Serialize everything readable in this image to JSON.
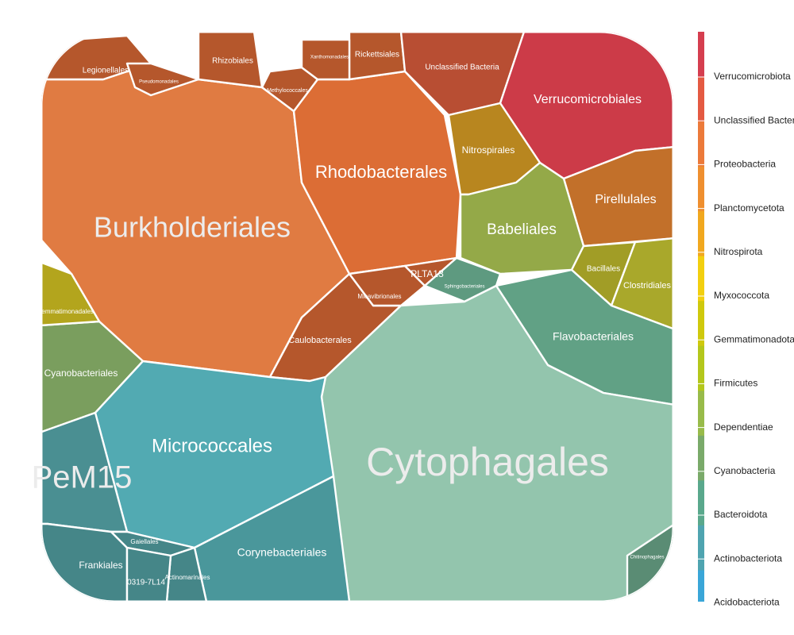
{
  "chart_data": {
    "type": "voronoi_treemap",
    "title": "",
    "legend": {
      "position": "right",
      "entries": [
        {
          "name": "Verrucomicrobiota",
          "color": "#d53e4f"
        },
        {
          "name": "Unclassified Bacteria",
          "color": "#e45a42"
        },
        {
          "name": "Proteobacteria",
          "color": "#ec7a3a"
        },
        {
          "name": "Planctomycetota",
          "color": "#ef8f2f"
        },
        {
          "name": "Nitrospirota",
          "color": "#f1a81f"
        },
        {
          "name": "Myxococcota",
          "color": "#f2cf0f"
        },
        {
          "name": "Gemmatimonadota",
          "color": "#cfc90d"
        },
        {
          "name": "Firmicutes",
          "color": "#b4c71c"
        },
        {
          "name": "Dependentiae",
          "color": "#98bb4a"
        },
        {
          "name": "Cyanobacteria",
          "color": "#7aaa6a"
        },
        {
          "name": "Bacteroidota",
          "color": "#5aa88c"
        },
        {
          "name": "Actinobacteriota",
          "color": "#4fa4b0"
        },
        {
          "name": "Acidobacteriota",
          "color": "#3aa6d8"
        }
      ]
    },
    "cells": [
      {
        "label": "Burkholderiales",
        "phylum": "Proteobacteria",
        "color": "#e07b42",
        "size": "xl"
      },
      {
        "label": "Rhodobacterales",
        "phylum": "Proteobacteria",
        "color": "#dc6d35",
        "size": "l"
      },
      {
        "label": "Caulobacterales",
        "phylum": "Proteobacteria",
        "color": "#b5572c",
        "size": "s"
      },
      {
        "label": "Micavibrionales",
        "phylum": "Proteobacteria",
        "color": "#b5572c",
        "size": "xs"
      },
      {
        "label": "PLTA13",
        "phylum": "Proteobacteria",
        "color": "#b5572c",
        "size": "s"
      },
      {
        "label": "Legionellales",
        "phylum": "Proteobacteria",
        "color": "#b5572c",
        "size": "s"
      },
      {
        "label": "Rhizobiales",
        "phylum": "Proteobacteria",
        "color": "#b5572c",
        "size": "s"
      },
      {
        "label": "Rickettsiales",
        "phylum": "Proteobacteria",
        "color": "#b5572c",
        "size": "s"
      },
      {
        "label": "Methylococcales",
        "phylum": "Proteobacteria",
        "color": "#b5572c",
        "size": "xs"
      },
      {
        "label": "Pseudomonadales",
        "phylum": "Proteobacteria",
        "color": "#b5572c",
        "size": "xs"
      },
      {
        "label": "Xanthomonadales",
        "phylum": "Proteobacteria",
        "color": "#b5572c",
        "size": "xs"
      },
      {
        "label": "Unclassified Bacteria",
        "phylum": "Unclassified Bacteria",
        "color": "#b84e33",
        "size": "s"
      },
      {
        "label": "Verrucomicrobiales",
        "phylum": "Verrucomicrobiota",
        "color": "#cc3b48",
        "size": "m"
      },
      {
        "label": "Nitrospirales",
        "phylum": "Nitrospirota",
        "color": "#b8861f",
        "size": "s"
      },
      {
        "label": "Pirellulales",
        "phylum": "Planctomycetota",
        "color": "#c2702a",
        "size": "m"
      },
      {
        "label": "Babeliales",
        "phylum": "Dependentiae",
        "color": "#94a948",
        "size": "m"
      },
      {
        "label": "Bacillales",
        "phylum": "Firmicutes",
        "color": "#a19d26",
        "size": "xs"
      },
      {
        "label": "Clostridiales",
        "phylum": "Firmicutes",
        "color": "#a9a82b",
        "size": "s"
      },
      {
        "label": "Sphingobacteriales",
        "phylum": "Bacteroidota",
        "color": "#5e9a80",
        "size": "xs"
      },
      {
        "label": "Flavobacteriales",
        "phylum": "Bacteroidota",
        "color": "#61a185",
        "size": "m"
      },
      {
        "label": "Cytophagales",
        "phylum": "Bacteroidota",
        "color": "#93c5ad",
        "size": "xxl"
      },
      {
        "label": "Chitinophagales",
        "phylum": "Bacteroidota",
        "color": "#5a8c74",
        "size": "xs"
      },
      {
        "label": "Cyanobacteriales",
        "phylum": "Cyanobacteria",
        "color": "#7a9e5e",
        "size": "s"
      },
      {
        "label": "Gemmatimonadales",
        "phylum": "Gemmatimonadota",
        "color": "#b3a51d",
        "size": "xs"
      },
      {
        "label": "Micrococcales",
        "phylum": "Actinobacteriota",
        "color": "#52aab2",
        "size": "l"
      },
      {
        "label": "Corynebacteriales",
        "phylum": "Actinobacteriota",
        "color": "#4a979b",
        "size": "m"
      },
      {
        "label": "PeM15",
        "phylum": "Actinobacteriota",
        "color": "#4a8f92",
        "size": "l"
      },
      {
        "label": "Frankiales",
        "phylum": "Actinobacteriota",
        "color": "#458688",
        "size": "s"
      },
      {
        "label": "Gaiellales",
        "phylum": "Actinobacteriota",
        "color": "#458688",
        "size": "xs"
      },
      {
        "label": "Actinomarinales",
        "phylum": "Actinobacteriota",
        "color": "#458688",
        "size": "xs"
      },
      {
        "label": "0319-7L14",
        "phylum": "Actinobacteriota",
        "color": "#458688",
        "size": "xs"
      }
    ]
  }
}
